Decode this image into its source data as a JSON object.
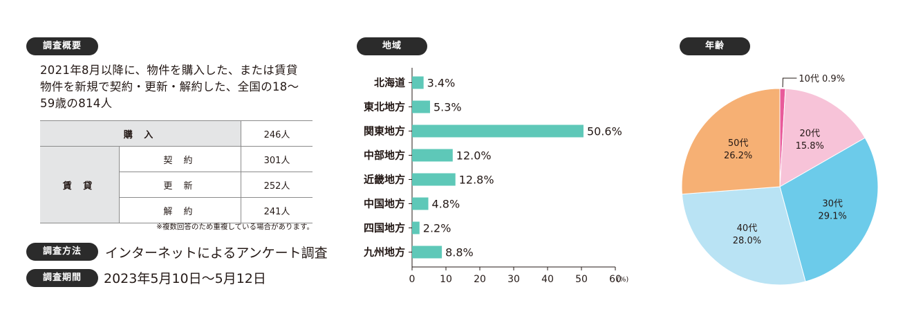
{
  "survey": {
    "badge": "調査概要",
    "description": "2021年8月以降に、物件を購入した、または賃貸物件を新規で契約・更新・解約した、全国の18〜59歳の814人",
    "description_lines": [
      "2021年8月以降に、物件を購入した、または賃貸",
      "物件を新規で契約・更新・解約した、全国の18〜",
      "59歳の814人"
    ],
    "table": {
      "purchase_label": "購 入",
      "purchase_value": "246人",
      "rental_label": "賃 貸",
      "rows": [
        {
          "label": "契 約",
          "value": "301人"
        },
        {
          "label": "更 新",
          "value": "252人"
        },
        {
          "label": "解 約",
          "value": "241人"
        }
      ]
    },
    "note": "※複数回答のため重複している場合があります。",
    "method_badge": "調査方法",
    "method": "インターネットによるアンケート調査",
    "period_badge": "調査期間",
    "period": "2023年5月10日〜5月12日"
  },
  "region": {
    "badge": "地域"
  },
  "age": {
    "badge": "年齢"
  },
  "colors": {
    "badge_bg": "#2b2b2b",
    "bar": "#5ec8b8",
    "age_10s": "#e85a9a",
    "age_20s": "#f7c3d8",
    "age_30s": "#6ccbea",
    "age_40s": "#b9e3f4",
    "age_50s": "#f6b074"
  },
  "chart_data": [
    {
      "type": "bar",
      "orientation": "horizontal",
      "categories": [
        "北海道",
        "東北地方",
        "関東地方",
        "中部地方",
        "近畿地方",
        "中国地方",
        "四国地方",
        "九州地方"
      ],
      "values": [
        3.4,
        5.3,
        50.6,
        12.0,
        12.8,
        4.8,
        2.2,
        8.8
      ],
      "value_labels": [
        "3.4%",
        "5.3%",
        "50.6%",
        "12.0%",
        "12.8%",
        "4.8%",
        "2.2%",
        "8.8%"
      ],
      "xlim": [
        0,
        60
      ],
      "xticks": [
        "0",
        "10",
        "20",
        "30",
        "40",
        "50",
        "60"
      ],
      "x_unit": "(%)",
      "title": "地域"
    },
    {
      "type": "pie",
      "title": "年齢",
      "labels": [
        "10代",
        "20代",
        "30代",
        "40代",
        "50代"
      ],
      "values": [
        0.9,
        15.8,
        29.1,
        28.0,
        26.2
      ],
      "value_labels": [
        "0.9%",
        "15.8%",
        "29.1%",
        "28.0%",
        "26.2%"
      ]
    }
  ]
}
